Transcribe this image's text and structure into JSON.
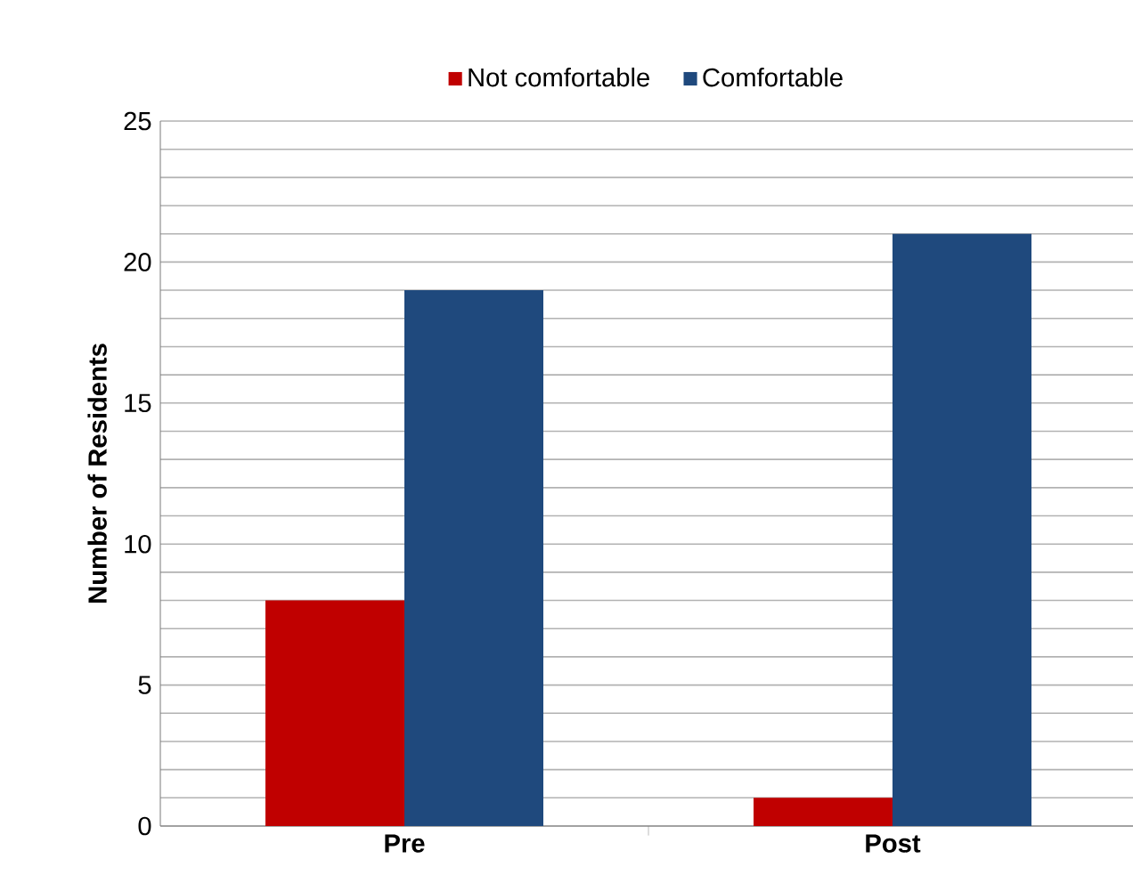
{
  "chart_data": {
    "type": "bar",
    "ylabel": "Number of Residents",
    "categories": [
      "Pre",
      "Post"
    ],
    "series": [
      {
        "name": "Not comfortable",
        "color": "#c00000",
        "values": [
          8,
          1
        ]
      },
      {
        "name": "Comfortable",
        "color": "#1f497d",
        "values": [
          19,
          21
        ]
      }
    ],
    "ylim": [
      0,
      25
    ],
    "yticks": [
      0,
      {
        "value": 1,
        "label": null
      },
      {
        "value": 2,
        "label": null
      },
      {
        "value": 3,
        "label": null
      },
      {
        "value": 4,
        "label": null
      },
      5,
      {
        "value": 6,
        "label": null
      },
      {
        "value": 7,
        "label": null
      },
      {
        "value": 8,
        "label": null
      },
      {
        "value": 9,
        "label": null
      },
      10,
      {
        "value": 11,
        "label": null
      },
      {
        "value": 12,
        "label": null
      },
      {
        "value": 13,
        "label": null
      },
      {
        "value": 14,
        "label": null
      },
      15,
      {
        "value": 16,
        "label": null
      },
      {
        "value": 17,
        "label": null
      },
      {
        "value": 18,
        "label": null
      },
      {
        "value": 19,
        "label": null
      },
      20,
      {
        "value": 21,
        "label": null
      },
      {
        "value": 22,
        "label": null
      },
      {
        "value": 23,
        "label": null
      },
      {
        "value": 24,
        "label": null
      },
      25
    ],
    "grid": "y",
    "legend": "top"
  }
}
